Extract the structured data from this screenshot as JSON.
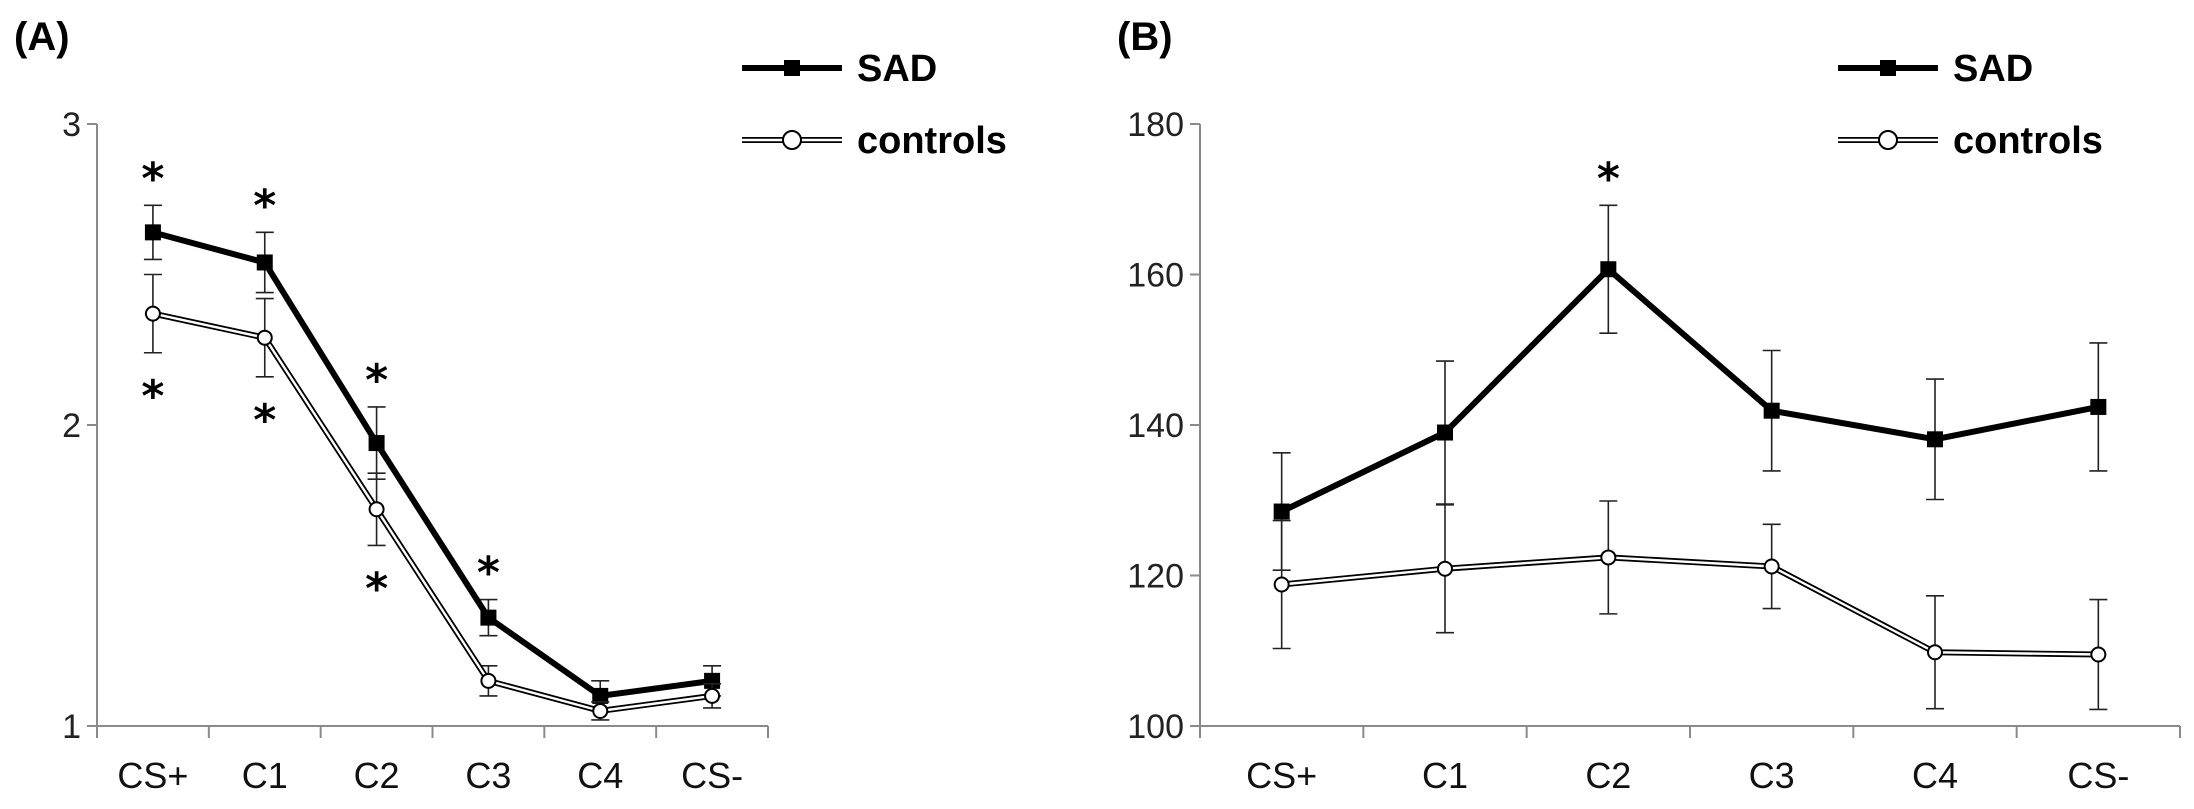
{
  "chart_data": [
    {
      "type": "line",
      "panel_label": "(A)",
      "categories": [
        "CS+",
        "C1",
        "C2",
        "C3",
        "C4",
        "CS-"
      ],
      "ylim": [
        1,
        3
      ],
      "yticks": [
        1,
        2,
        3
      ],
      "grid": false,
      "legend_position": "top-right",
      "series": [
        {
          "name": "SAD",
          "style": "thick-filled-square",
          "values": [
            2.64,
            2.54,
            1.94,
            1.36,
            1.1,
            1.15
          ],
          "errors": [
            0.09,
            0.1,
            0.12,
            0.06,
            0.05,
            0.05
          ]
        },
        {
          "name": "controls",
          "style": "double-line-open-circle",
          "values": [
            2.37,
            2.29,
            1.72,
            1.15,
            1.05,
            1.1
          ],
          "errors": [
            0.13,
            0.13,
            0.12,
            0.05,
            0.03,
            0.04
          ]
        }
      ],
      "annotations": [
        {
          "text": "*",
          "category": "CS+",
          "position": "above",
          "series": "SAD"
        },
        {
          "text": "*",
          "category": "C1",
          "position": "above",
          "series": "SAD"
        },
        {
          "text": "*",
          "category": "C2",
          "position": "above",
          "series": "SAD"
        },
        {
          "text": "*",
          "category": "C3",
          "position": "above",
          "series": "SAD"
        },
        {
          "text": "*",
          "category": "CS+",
          "position": "below",
          "series": "controls"
        },
        {
          "text": "*",
          "category": "C1",
          "position": "below",
          "series": "controls"
        },
        {
          "text": "*",
          "category": "C2",
          "position": "below",
          "series": "controls"
        }
      ]
    },
    {
      "type": "line",
      "panel_label": "(B)",
      "categories": [
        "CS+",
        "C1",
        "C2",
        "C3",
        "C4",
        "CS-"
      ],
      "ylim": [
        100,
        180
      ],
      "yticks": [
        100,
        120,
        140,
        160,
        180
      ],
      "grid": false,
      "legend_position": "top-right",
      "series": [
        {
          "name": "SAD",
          "style": "thick-filled-square",
          "values": [
            128.5,
            139.0,
            160.7,
            141.9,
            138.1,
            142.4
          ],
          "errors": [
            7.8,
            9.5,
            8.5,
            8.0,
            8.0,
            8.5
          ]
        },
        {
          "name": "controls",
          "style": "double-line-open-circle",
          "values": [
            118.8,
            120.9,
            122.4,
            121.2,
            109.8,
            109.5
          ],
          "errors": [
            8.5,
            8.5,
            7.5,
            5.6,
            7.5,
            7.3
          ]
        }
      ],
      "annotations": [
        {
          "text": "*",
          "category": "C2",
          "position": "above",
          "series": "SAD"
        }
      ]
    }
  ]
}
